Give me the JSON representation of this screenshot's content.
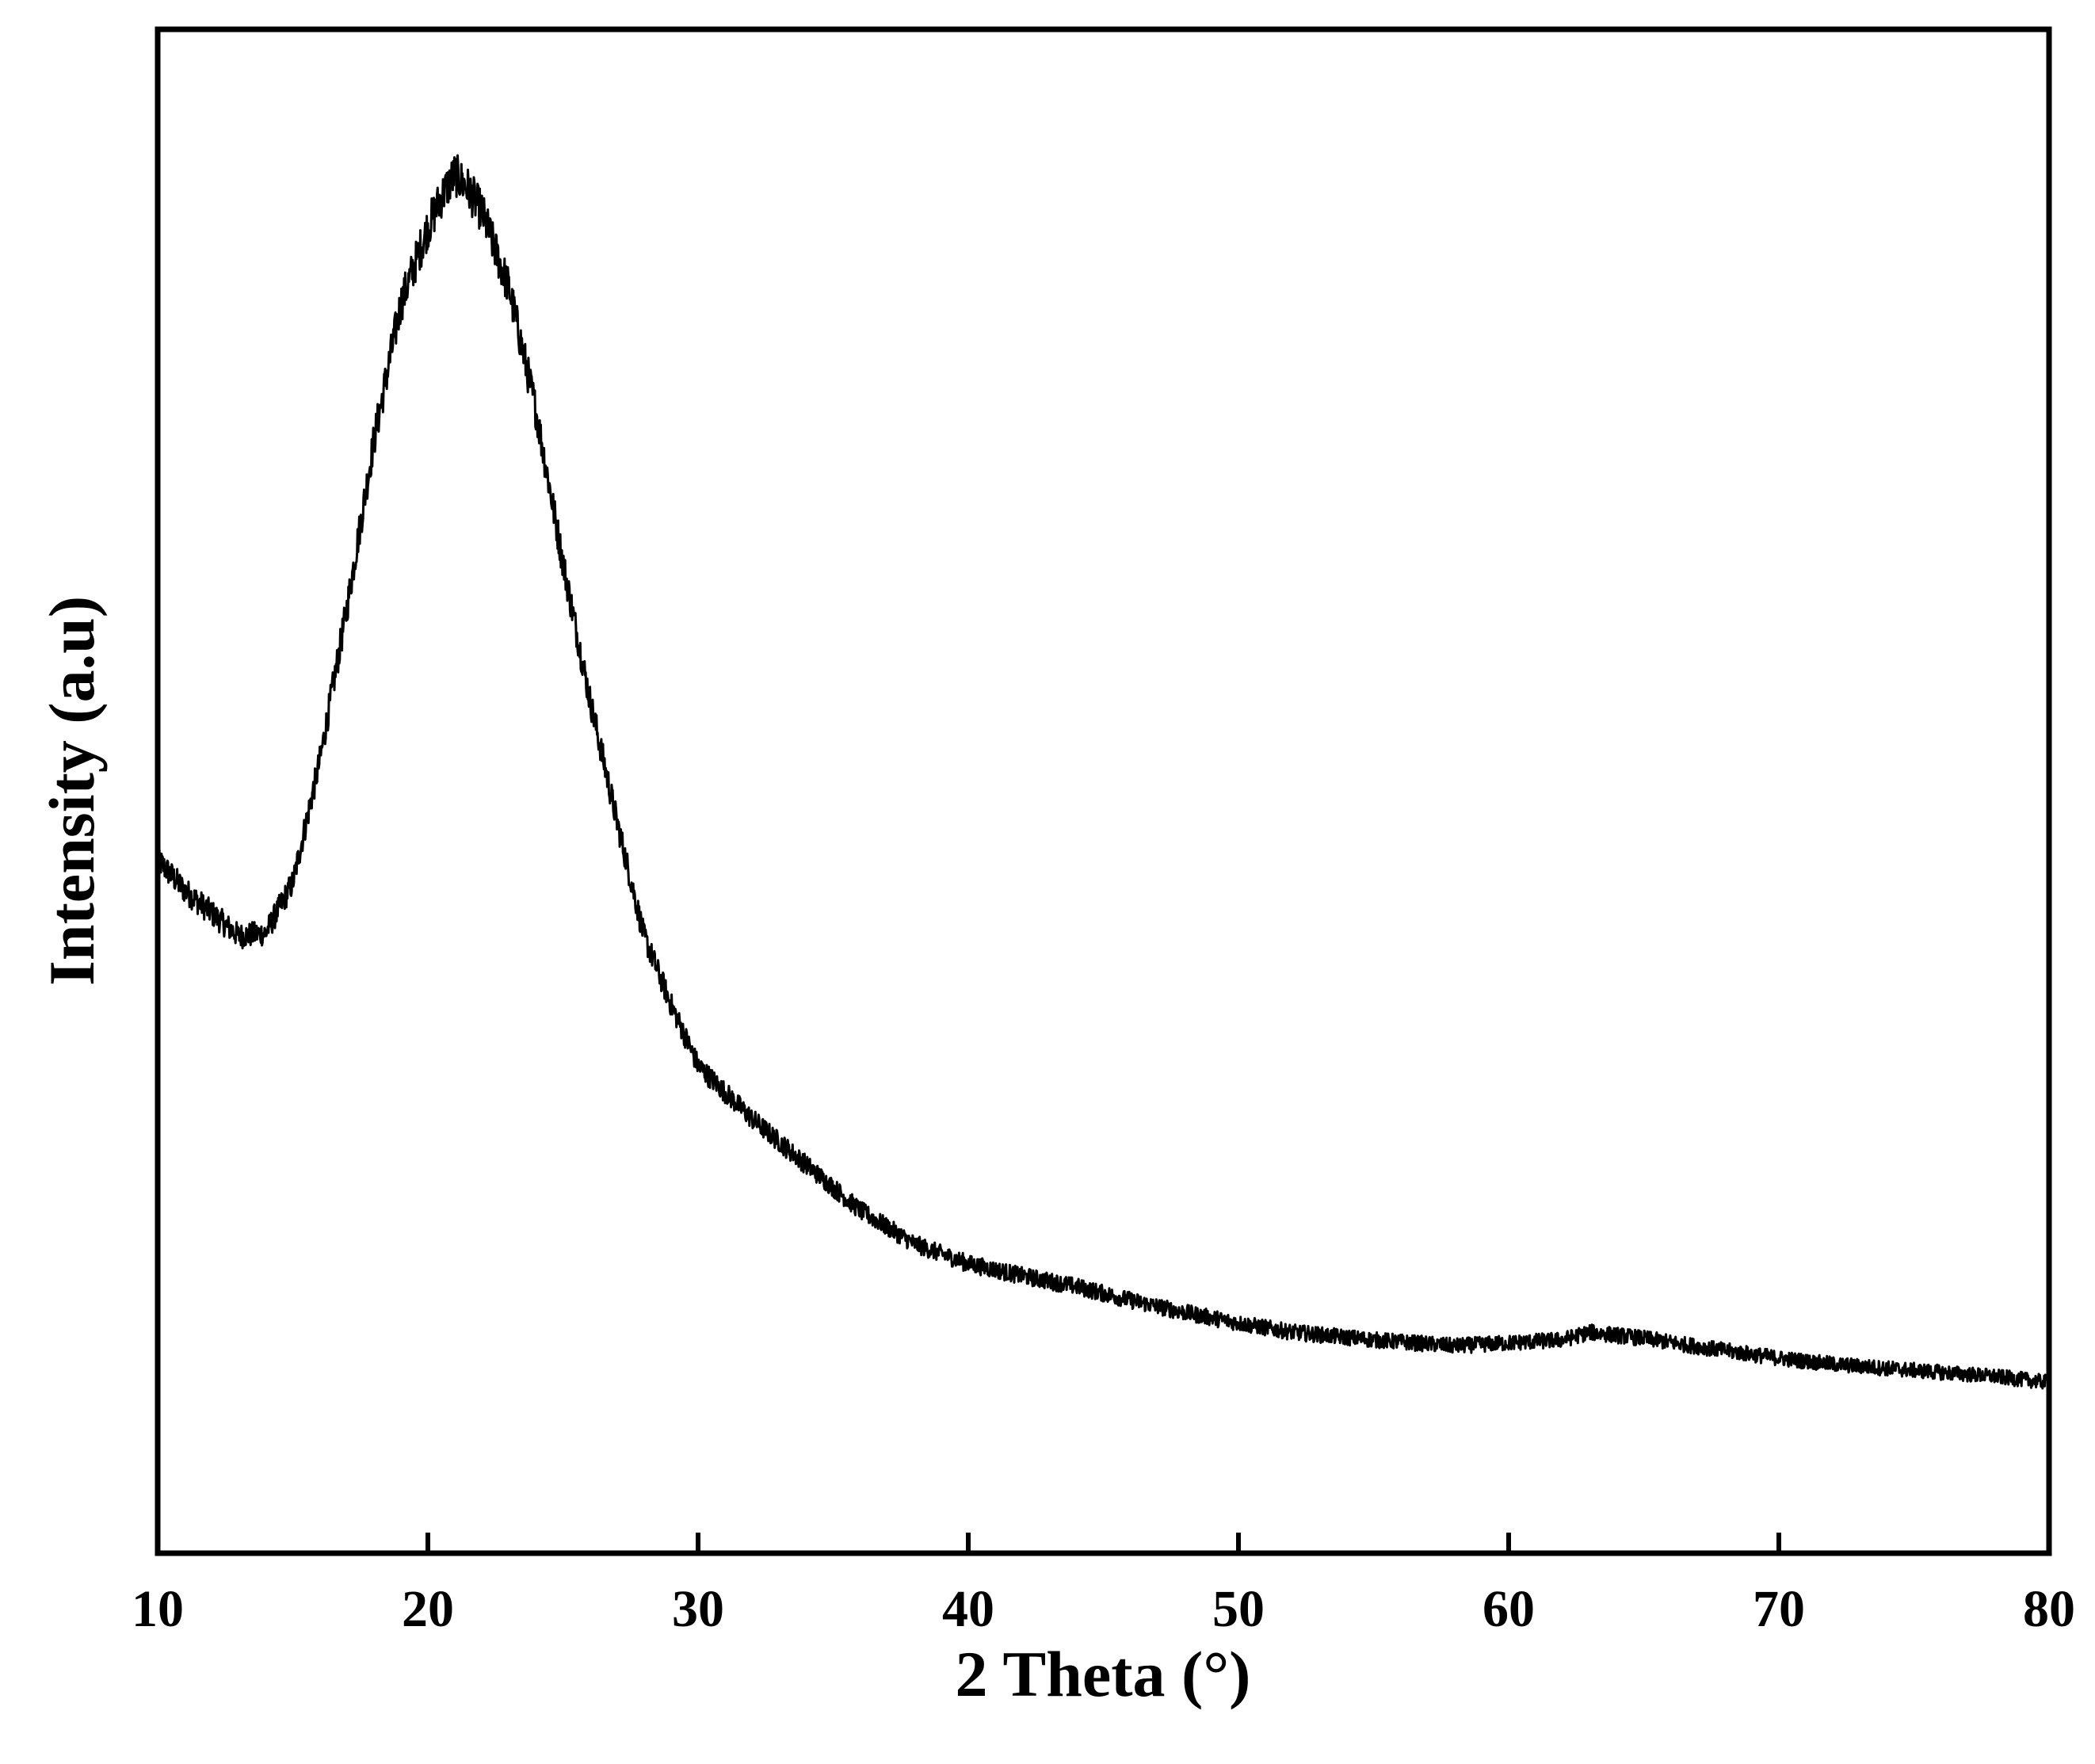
{
  "chart_data": {
    "type": "line",
    "xlabel": "2 Theta (°)",
    "ylabel": "Intensity (a.u)",
    "xlim": [
      10,
      80
    ],
    "ylim": [
      0,
      100
    ],
    "x_ticks": [
      10,
      20,
      30,
      40,
      50,
      60,
      70,
      80
    ],
    "y_ticks_shown": false,
    "grid": false,
    "legend": "none",
    "line_color": "#000000",
    "series": [
      {
        "x": [
          10,
          11,
          12,
          13,
          14,
          15,
          16,
          17,
          18,
          19,
          20,
          20.5,
          21,
          21.5,
          22,
          23,
          24,
          25,
          26,
          27,
          28,
          29,
          30,
          32,
          34,
          36,
          38,
          40,
          42,
          44,
          46,
          48,
          50,
          52,
          55,
          58,
          60,
          62,
          63,
          65,
          68,
          70,
          72,
          75,
          78,
          80
        ],
        "y": [
          45.5,
          43.5,
          42,
          40.5,
          40.7,
          44,
          52,
          62,
          73,
          82,
          87,
          89,
          90.5,
          89.5,
          88,
          83,
          75,
          65,
          56,
          48,
          40.5,
          36,
          32,
          28.5,
          25.5,
          22.5,
          20.3,
          19,
          18.2,
          17.5,
          16.6,
          15.8,
          15.1,
          14.5,
          14,
          13.6,
          13.8,
          14,
          14.5,
          14.1,
          13.3,
          12.8,
          12.4,
          12,
          11.6,
          11.2
        ]
      }
    ]
  }
}
